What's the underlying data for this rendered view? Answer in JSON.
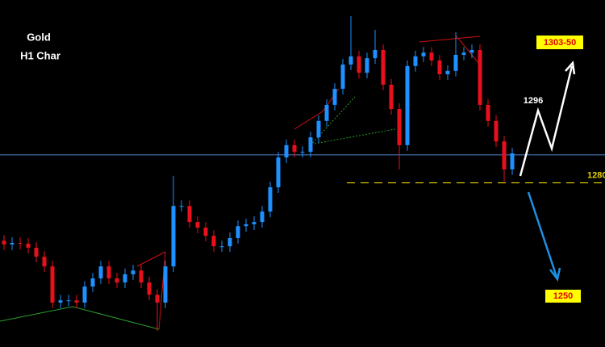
{
  "chart_data": {
    "type": "candlestick",
    "title": "Gold",
    "subtitle": "H1 Char",
    "ylim": [
      1236,
      1329
    ],
    "up_color": "#1e90ff",
    "down_color": "#e8101c",
    "open": [
      1264.5,
      1263.5,
      1263.9,
      1263.7,
      1262.6,
      1260.2,
      1257.6,
      1247.9,
      1248.5,
      1248.5,
      1247.9,
      1252.2,
      1254.4,
      1257.6,
      1254.4,
      1253.3,
      1255.5,
      1256.5,
      1253.3,
      1250.0,
      1247.9,
      1257.6,
      1273.8,
      1273.8,
      1269.5,
      1268.0,
      1265.8,
      1263.0,
      1263.0,
      1265.2,
      1268.4,
      1268.9,
      1269.5,
      1272.3,
      1278.8,
      1286.8,
      1290.1,
      1288.3,
      1288.3,
      1292.2,
      1296.6,
      1300.9,
      1305.2,
      1311.7,
      1313.9,
      1309.5,
      1313.4,
      1315.6,
      1306.3,
      1299.8,
      1290.1,
      1311.3,
      1313.9,
      1314.9,
      1312.8,
      1309.1,
      1310.0,
      1314.3,
      1314.9,
      1315.6,
      1300.9,
      1296.6,
      1291.1,
      1283.6
    ],
    "high": [
      1266.0,
      1265.4,
      1265.4,
      1265.2,
      1264.1,
      1261.7,
      1259.1,
      1250.0,
      1250.0,
      1250.0,
      1253.7,
      1255.9,
      1259.1,
      1259.1,
      1255.9,
      1257.0,
      1258.0,
      1258.0,
      1254.8,
      1251.5,
      1259.1,
      1281.9,
      1275.3,
      1275.3,
      1271.0,
      1269.5,
      1267.3,
      1264.5,
      1266.7,
      1269.9,
      1270.4,
      1271.0,
      1273.8,
      1280.3,
      1288.3,
      1291.6,
      1291.6,
      1289.8,
      1293.7,
      1298.1,
      1302.4,
      1306.7,
      1313.2,
      1324.7,
      1315.4,
      1314.9,
      1321.0,
      1317.1,
      1307.8,
      1301.3,
      1312.8,
      1315.4,
      1316.4,
      1316.4,
      1314.3,
      1311.5,
      1320.4,
      1316.4,
      1317.1,
      1317.1,
      1302.4,
      1298.1,
      1292.6,
      1289.4
    ],
    "low": [
      1262.0,
      1262.0,
      1262.2,
      1261.1,
      1258.7,
      1256.1,
      1246.4,
      1246.4,
      1247.0,
      1246.4,
      1246.4,
      1250.7,
      1252.9,
      1252.9,
      1251.8,
      1251.8,
      1254.0,
      1251.8,
      1248.5,
      1240.3,
      1246.4,
      1256.1,
      1272.3,
      1268.0,
      1266.5,
      1264.3,
      1261.5,
      1261.5,
      1261.5,
      1263.7,
      1266.9,
      1267.4,
      1268.0,
      1270.8,
      1277.3,
      1285.3,
      1286.8,
      1286.8,
      1286.8,
      1290.7,
      1295.1,
      1299.4,
      1303.7,
      1310.2,
      1308.0,
      1308.0,
      1311.9,
      1304.8,
      1298.3,
      1283.6,
      1288.6,
      1309.8,
      1312.4,
      1311.3,
      1307.6,
      1307.6,
      1308.5,
      1312.8,
      1313.4,
      1299.4,
      1295.1,
      1289.6,
      1280.3,
      1282.1
    ],
    "close": [
      1263.5,
      1263.9,
      1263.7,
      1262.6,
      1260.2,
      1257.6,
      1247.9,
      1248.5,
      1248.5,
      1247.9,
      1252.2,
      1254.4,
      1257.6,
      1254.4,
      1253.3,
      1255.5,
      1256.5,
      1253.3,
      1250.0,
      1247.9,
      1257.6,
      1273.8,
      1273.8,
      1269.5,
      1268.0,
      1265.8,
      1263.0,
      1263.0,
      1265.2,
      1268.4,
      1268.9,
      1269.5,
      1272.3,
      1278.8,
      1286.8,
      1290.1,
      1288.3,
      1288.3,
      1292.2,
      1296.6,
      1300.9,
      1305.2,
      1311.7,
      1313.9,
      1309.5,
      1313.4,
      1315.6,
      1306.3,
      1299.8,
      1290.1,
      1311.3,
      1313.9,
      1314.9,
      1312.8,
      1309.1,
      1310.0,
      1314.3,
      1314.9,
      1315.6,
      1300.9,
      1296.6,
      1291.1,
      1283.6,
      1287.9
    ],
    "price_line": 1287.5,
    "price_line_color": "#4a86c8",
    "support": 1280,
    "support_color": "#e6d200",
    "targets": [
      "1303-50",
      "1296",
      "1250"
    ]
  }
}
